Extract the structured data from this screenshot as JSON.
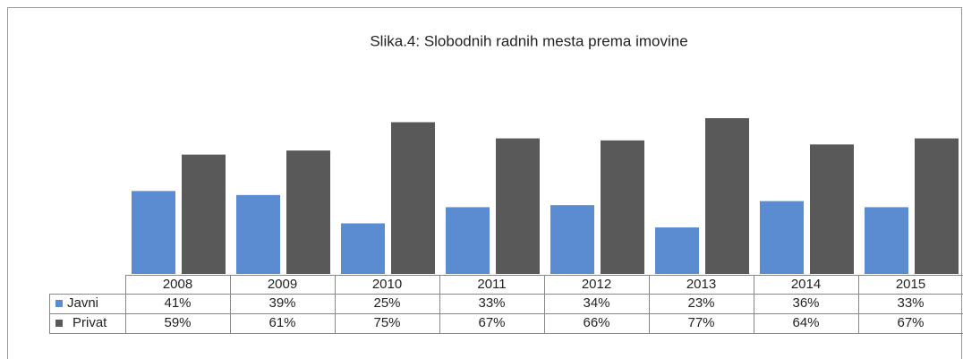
{
  "chart_data": {
    "type": "bar",
    "title": "Slika.4: Slobodnih radnih mesta  prema imovine",
    "categories": [
      "2008",
      "2009",
      "2010",
      "2011",
      "2012",
      "2013",
      "2014",
      "2015"
    ],
    "series": [
      {
        "name": "Javni",
        "color": "#5b8bd0",
        "values": [
          41,
          39,
          25,
          33,
          34,
          23,
          36,
          33
        ],
        "value_labels": [
          "41%",
          "39%",
          "25%",
          "33%",
          "34%",
          "23%",
          "36%",
          "33%"
        ]
      },
      {
        "name": "Privat",
        "color": "#595959",
        "values": [
          59,
          61,
          75,
          67,
          66,
          77,
          64,
          67
        ],
        "value_labels": [
          "59%",
          "61%",
          "75%",
          "67%",
          "66%",
          "77%",
          "64%",
          "67%"
        ]
      }
    ]
  }
}
